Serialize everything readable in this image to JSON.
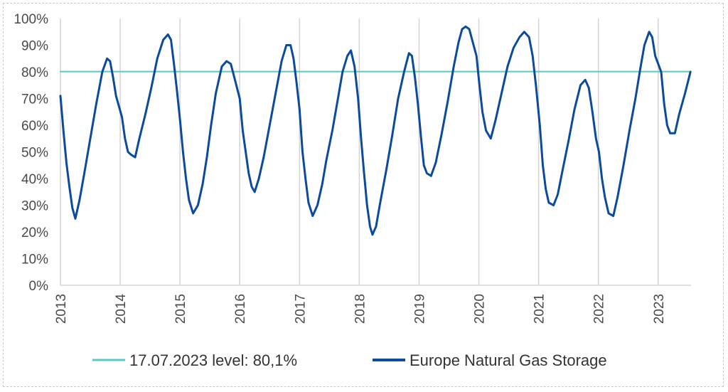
{
  "chart_data": {
    "type": "line",
    "title": "",
    "xlabel": "",
    "ylabel": "",
    "ylim": [
      0,
      100
    ],
    "xlim": [
      2013,
      2023.55
    ],
    "grid": "vertical",
    "y_tick_labels": [
      "0%",
      "10%",
      "20%",
      "30%",
      "40%",
      "50%",
      "60%",
      "70%",
      "80%",
      "90%",
      "100%"
    ],
    "y_ticks": [
      0,
      10,
      20,
      30,
      40,
      50,
      60,
      70,
      80,
      90,
      100
    ],
    "x_tick_labels": [
      "2013",
      "2014",
      "2015",
      "2016",
      "2017",
      "2018",
      "2019",
      "2020",
      "2021",
      "2022",
      "2023"
    ],
    "x_ticks": [
      2013,
      2014,
      2015,
      2016,
      2017,
      2018,
      2019,
      2020,
      2021,
      2022,
      2023
    ],
    "legend_position": "bottom",
    "series": [
      {
        "name": "17.07.2023 level: 80,1%",
        "color": "#5bc8c8",
        "points": [
          [
            2013.0,
            80.1
          ],
          [
            2023.54,
            80.1
          ]
        ]
      },
      {
        "name": "Europe Natural Gas Storage",
        "color": "#0b4a9c",
        "points": [
          [
            2013.0,
            71
          ],
          [
            2013.05,
            58
          ],
          [
            2013.1,
            46
          ],
          [
            2013.15,
            37
          ],
          [
            2013.2,
            29
          ],
          [
            2013.25,
            25
          ],
          [
            2013.32,
            32
          ],
          [
            2013.4,
            42
          ],
          [
            2013.5,
            55
          ],
          [
            2013.6,
            68
          ],
          [
            2013.7,
            80
          ],
          [
            2013.78,
            85
          ],
          [
            2013.83,
            84
          ],
          [
            2013.88,
            78
          ],
          [
            2013.93,
            71
          ],
          [
            2013.98,
            67
          ],
          [
            2014.03,
            63
          ],
          [
            2014.08,
            55
          ],
          [
            2014.13,
            50
          ],
          [
            2014.18,
            49
          ],
          [
            2014.25,
            48
          ],
          [
            2014.32,
            55
          ],
          [
            2014.42,
            64
          ],
          [
            2014.52,
            74
          ],
          [
            2014.62,
            85
          ],
          [
            2014.72,
            92
          ],
          [
            2014.8,
            94
          ],
          [
            2014.85,
            92
          ],
          [
            2014.9,
            83
          ],
          [
            2014.95,
            73
          ],
          [
            2015.0,
            62
          ],
          [
            2015.05,
            50
          ],
          [
            2015.1,
            40
          ],
          [
            2015.15,
            32
          ],
          [
            2015.22,
            27
          ],
          [
            2015.3,
            30
          ],
          [
            2015.38,
            38
          ],
          [
            2015.45,
            48
          ],
          [
            2015.52,
            60
          ],
          [
            2015.6,
            72
          ],
          [
            2015.7,
            82
          ],
          [
            2015.78,
            84
          ],
          [
            2015.85,
            83
          ],
          [
            2015.92,
            77
          ],
          [
            2016.0,
            70
          ],
          [
            2016.05,
            58
          ],
          [
            2016.1,
            50
          ],
          [
            2016.15,
            42
          ],
          [
            2016.2,
            37
          ],
          [
            2016.25,
            35
          ],
          [
            2016.32,
            40
          ],
          [
            2016.4,
            48
          ],
          [
            2016.5,
            60
          ],
          [
            2016.6,
            72
          ],
          [
            2016.7,
            84
          ],
          [
            2016.78,
            90
          ],
          [
            2016.85,
            90
          ],
          [
            2016.9,
            85
          ],
          [
            2016.95,
            76
          ],
          [
            2017.0,
            66
          ],
          [
            2017.05,
            50
          ],
          [
            2017.1,
            40
          ],
          [
            2017.15,
            31
          ],
          [
            2017.22,
            26
          ],
          [
            2017.3,
            30
          ],
          [
            2017.38,
            38
          ],
          [
            2017.45,
            47
          ],
          [
            2017.55,
            58
          ],
          [
            2017.65,
            71
          ],
          [
            2017.72,
            80
          ],
          [
            2017.8,
            86
          ],
          [
            2017.86,
            88
          ],
          [
            2017.92,
            82
          ],
          [
            2017.98,
            70
          ],
          [
            2018.03,
            55
          ],
          [
            2018.08,
            42
          ],
          [
            2018.13,
            30
          ],
          [
            2018.18,
            22
          ],
          [
            2018.22,
            19
          ],
          [
            2018.28,
            22
          ],
          [
            2018.35,
            31
          ],
          [
            2018.45,
            43
          ],
          [
            2018.55,
            56
          ],
          [
            2018.65,
            70
          ],
          [
            2018.75,
            80
          ],
          [
            2018.83,
            87
          ],
          [
            2018.88,
            86
          ],
          [
            2018.93,
            78
          ],
          [
            2018.98,
            68
          ],
          [
            2019.03,
            56
          ],
          [
            2019.08,
            45
          ],
          [
            2019.13,
            42
          ],
          [
            2019.2,
            41
          ],
          [
            2019.28,
            46
          ],
          [
            2019.38,
            57
          ],
          [
            2019.48,
            69
          ],
          [
            2019.58,
            82
          ],
          [
            2019.66,
            91
          ],
          [
            2019.72,
            96
          ],
          [
            2019.78,
            97
          ],
          [
            2019.84,
            96
          ],
          [
            2019.9,
            91
          ],
          [
            2019.96,
            86
          ],
          [
            2020.01,
            75
          ],
          [
            2020.06,
            65
          ],
          [
            2020.12,
            58
          ],
          [
            2020.2,
            55
          ],
          [
            2020.28,
            62
          ],
          [
            2020.38,
            72
          ],
          [
            2020.48,
            82
          ],
          [
            2020.58,
            89
          ],
          [
            2020.68,
            93
          ],
          [
            2020.76,
            95
          ],
          [
            2020.84,
            93
          ],
          [
            2020.9,
            86
          ],
          [
            2020.96,
            74
          ],
          [
            2021.02,
            60
          ],
          [
            2021.07,
            45
          ],
          [
            2021.12,
            36
          ],
          [
            2021.17,
            31
          ],
          [
            2021.25,
            30
          ],
          [
            2021.32,
            34
          ],
          [
            2021.4,
            43
          ],
          [
            2021.5,
            54
          ],
          [
            2021.6,
            66
          ],
          [
            2021.7,
            75
          ],
          [
            2021.78,
            77
          ],
          [
            2021.84,
            74
          ],
          [
            2021.9,
            65
          ],
          [
            2021.96,
            55
          ],
          [
            2022.01,
            50
          ],
          [
            2022.06,
            40
          ],
          [
            2022.11,
            33
          ],
          [
            2022.17,
            27
          ],
          [
            2022.25,
            26
          ],
          [
            2022.32,
            33
          ],
          [
            2022.42,
            45
          ],
          [
            2022.52,
            58
          ],
          [
            2022.62,
            70
          ],
          [
            2022.7,
            81
          ],
          [
            2022.77,
            90
          ],
          [
            2022.85,
            95
          ],
          [
            2022.9,
            93
          ],
          [
            2022.95,
            86
          ],
          [
            2023.0,
            83
          ],
          [
            2023.05,
            80
          ],
          [
            2023.1,
            68
          ],
          [
            2023.15,
            60
          ],
          [
            2023.2,
            57
          ],
          [
            2023.28,
            57
          ],
          [
            2023.35,
            64
          ],
          [
            2023.45,
            72
          ],
          [
            2023.54,
            80
          ]
        ]
      }
    ]
  }
}
